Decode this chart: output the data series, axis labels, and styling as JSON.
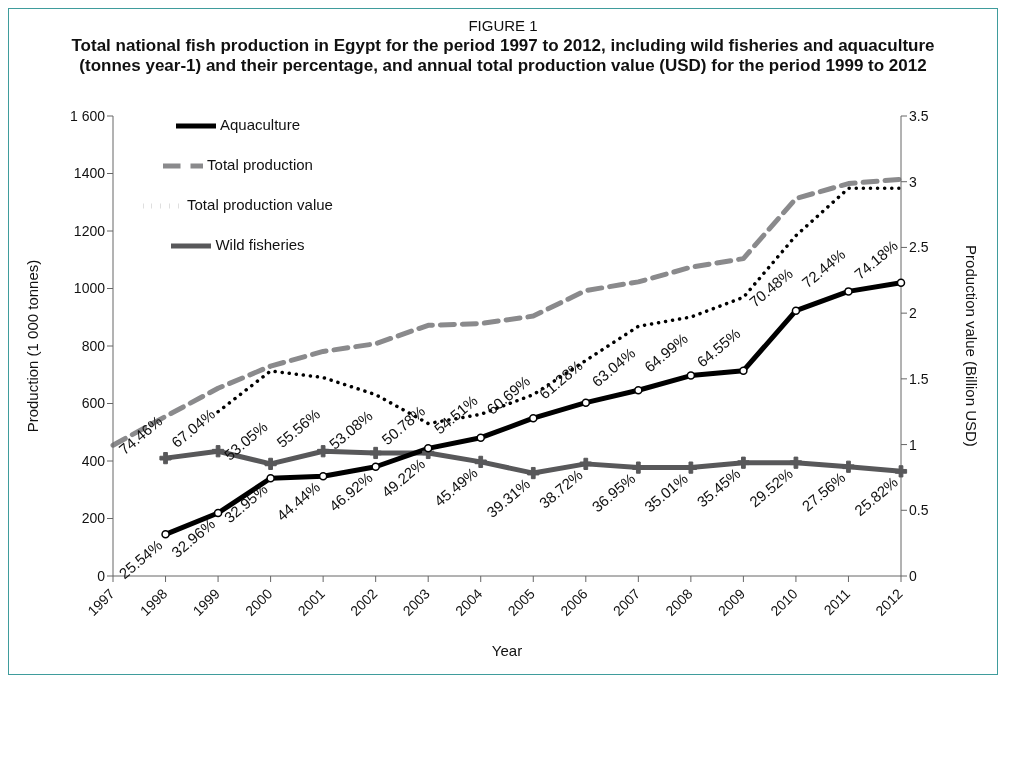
{
  "chart_data": {
    "type": "line",
    "subtitle": "FIGURE 1",
    "title": "Total national fish production in Egypt for the period 1997 to 2012, including wild fisheries and aquaculture (tonnes year-1) and their percentage, and annual total production value (USD) for the period 1999 to 2012",
    "xlabel": "Year",
    "ylabel": "Production (1 000 tonnes)",
    "y2label": "Production value (Billion USD)",
    "categories": [
      "1997",
      "1998",
      "1999",
      "2000",
      "2001",
      "2002",
      "2003",
      "2004",
      "2005",
      "2006",
      "2007",
      "2008",
      "2009",
      "2010",
      "2011",
      "2012"
    ],
    "series": [
      {
        "name": "Wild fisheries",
        "color": "#58585a",
        "marker": "cross",
        "line_style": "solid",
        "values": [
          null,
          410,
          434,
          390,
          434,
          428,
          428,
          397,
          358,
          390,
          377,
          377,
          394,
          394,
          380,
          364
        ]
      },
      {
        "name": "Aquaculture",
        "color": "#000000",
        "marker": "circle",
        "line_style": "solid",
        "values": [
          null,
          145,
          219,
          340,
          347,
          380,
          444,
          481,
          549,
          603,
          646,
          697,
          714,
          923,
          990,
          1020
        ]
      },
      {
        "name": "Total production",
        "color": "#8a8a8c",
        "marker": "none",
        "line_style": "dashed",
        "values": [
          455,
          555,
          653,
          730,
          781,
          808,
          872,
          878,
          904,
          993,
          1023,
          1074,
          1104,
          1313,
          1365,
          1380
        ]
      },
      {
        "name": "Total production value",
        "color": "#000000",
        "marker": "none",
        "line_style": "dotted",
        "axis": "y2",
        "values": [
          null,
          null,
          1.25,
          1.56,
          1.51,
          1.38,
          1.16,
          1.23,
          1.38,
          1.64,
          1.9,
          1.97,
          2.12,
          2.59,
          2.95,
          2.95
        ]
      }
    ],
    "ylim": [
      0,
      1600
    ],
    "yticks": [
      0,
      200,
      400,
      600,
      800,
      1000,
      1200,
      1400,
      {
        "value": 1600,
        "label": "1 600"
      }
    ],
    "y2lim": [
      0,
      3.5
    ],
    "y2ticks": [
      0,
      0.5,
      1,
      1.5,
      2,
      2.5,
      3,
      3.5
    ],
    "grid": false,
    "legend": "top left",
    "annotations": [
      {
        "text": "74.46%",
        "x": "1998",
        "y": 410
      },
      {
        "text": "25.54%",
        "x": "1998",
        "y": 145
      },
      {
        "text": "67.04%",
        "x": "1999",
        "y": 434
      },
      {
        "text": "32.96%",
        "x": "1999",
        "y": 219
      },
      {
        "text": "53.05%",
        "x": "2000",
        "y": 390
      },
      {
        "text": "32.95%",
        "x": "2000",
        "y": 340
      },
      {
        "text": "55.56%",
        "x": "2001",
        "y": 434
      },
      {
        "text": "44.44%",
        "x": "2001",
        "y": 347
      },
      {
        "text": "53.08%",
        "x": "2002",
        "y": 428
      },
      {
        "text": "46.92%",
        "x": "2002",
        "y": 380
      },
      {
        "text": "50.78%",
        "x": "2003",
        "y": 444
      },
      {
        "text": "49.22%",
        "x": "2003",
        "y": 428
      },
      {
        "text": "54.51%",
        "x": "2004",
        "y": 481
      },
      {
        "text": "45.49%",
        "x": "2004",
        "y": 397
      },
      {
        "text": "60.69%",
        "x": "2005",
        "y": 549
      },
      {
        "text": "39.31%",
        "x": "2005",
        "y": 358
      },
      {
        "text": "61.28%",
        "x": "2006",
        "y": 603
      },
      {
        "text": "38.72%",
        "x": "2006",
        "y": 390
      },
      {
        "text": "63.04%",
        "x": "2007",
        "y": 646
      },
      {
        "text": "36.95%",
        "x": "2007",
        "y": 377
      },
      {
        "text": "64.99%",
        "x": "2008",
        "y": 697
      },
      {
        "text": "35.01%",
        "x": "2008",
        "y": 377
      },
      {
        "text": "64.55%",
        "x": "2009",
        "y": 714
      },
      {
        "text": "35.45%",
        "x": "2009",
        "y": 394
      },
      {
        "text": "70.48%",
        "x": "2010",
        "y": 923
      },
      {
        "text": "29.52%",
        "x": "2010",
        "y": 394
      },
      {
        "text": "72.44%",
        "x": "2011",
        "y": 990
      },
      {
        "text": "27.56%",
        "x": "2011",
        "y": 380
      },
      {
        "text": "74.18%",
        "x": "2012",
        "y": 1020
      },
      {
        "text": "25.82%",
        "x": "2012",
        "y": 364
      }
    ]
  }
}
